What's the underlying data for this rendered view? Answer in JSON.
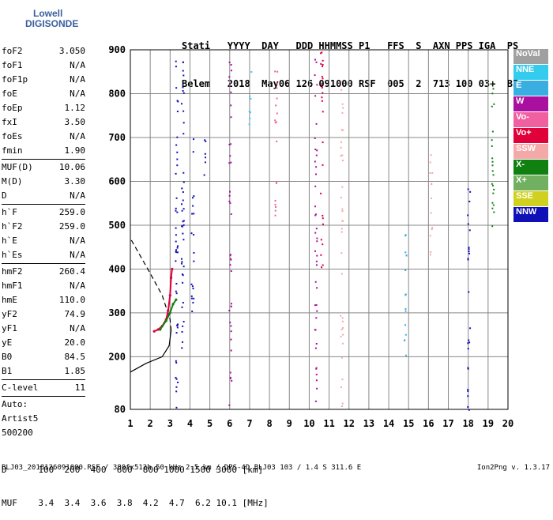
{
  "logo": {
    "line1": "Lowell",
    "line2": "DIGISONDE"
  },
  "header": {
    "labels": [
      "Stati",
      "YYYY",
      "DAY",
      "DDD",
      "HHMMSS",
      "P1",
      "FFS",
      "S",
      "AXN",
      "PPS",
      "IGA",
      "PS"
    ],
    "values": [
      "Belem",
      "2018",
      "May06",
      "126",
      "091000",
      "RSF",
      "005",
      "2",
      "713",
      "100",
      "03+",
      "B5"
    ]
  },
  "params": [
    {
      "k": "foF2",
      "v": "3.050"
    },
    {
      "k": "foF1",
      "v": "N/A"
    },
    {
      "k": "foF1p",
      "v": "N/A"
    },
    {
      "k": "foE",
      "v": "N/A"
    },
    {
      "k": "foEp",
      "v": "1.12"
    },
    {
      "k": "fxI",
      "v": "3.50"
    },
    {
      "k": "foEs",
      "v": "N/A"
    },
    {
      "k": "fmin",
      "v": "1.90"
    },
    {
      "sep": true
    },
    {
      "k": "MUF(D)",
      "v": "10.06"
    },
    {
      "k": "M(D)",
      "v": "3.30"
    },
    {
      "k": "D",
      "v": "N/A"
    },
    {
      "sep": true
    },
    {
      "k": "h`F",
      "v": "259.0"
    },
    {
      "k": "h`F2",
      "v": "259.0"
    },
    {
      "k": "h`E",
      "v": "N/A"
    },
    {
      "k": "h`Es",
      "v": "N/A"
    },
    {
      "sep": true
    },
    {
      "k": "hmF2",
      "v": "260.4"
    },
    {
      "k": "hmF1",
      "v": "N/A"
    },
    {
      "k": "hmE",
      "v": "110.0"
    },
    {
      "k": "yF2",
      "v": "74.9"
    },
    {
      "k": "yF1",
      "v": "N/A"
    },
    {
      "k": "yE",
      "v": "20.0"
    },
    {
      "k": "B0",
      "v": "84.5"
    },
    {
      "k": "B1",
      "v": "1.85"
    },
    {
      "sep": true
    },
    {
      "k": "C-level",
      "v": "11"
    },
    {
      "sep": true
    },
    {
      "k": "Auto:",
      "v": ""
    },
    {
      "k": "Artist5",
      "v": ""
    },
    {
      "k": "500200",
      "v": ""
    }
  ],
  "legend": [
    {
      "label": "NoVal",
      "color": "#a0a0a0"
    },
    {
      "label": "NNE",
      "color": "#33ccee"
    },
    {
      "label": "E",
      "color": "#3aaee0"
    },
    {
      "label": "W",
      "color": "#aa10a0"
    },
    {
      "label": "Vo-",
      "color": "#f060a0"
    },
    {
      "label": "Vo+",
      "color": "#e0003a"
    },
    {
      "label": "SSW",
      "color": "#f5a8a8"
    },
    {
      "label": "X-",
      "color": "#108010"
    },
    {
      "label": "X+",
      "color": "#70b060"
    },
    {
      "label": "SSE",
      "color": "#d0d020"
    },
    {
      "label": "NNW",
      "color": "#1010b8"
    }
  ],
  "dtable": {
    "d_label": "D",
    "muf_label": "MUF",
    "d_values": [
      "100",
      "200",
      "400",
      "600",
      "800",
      "1000",
      "1500",
      "3000"
    ],
    "muf_values": [
      "3.4",
      "3.4",
      "3.6",
      "3.8",
      "4.2",
      "4.7",
      "6.2",
      "10.1"
    ],
    "d_unit": "[km]",
    "muf_unit": "[MHz]"
  },
  "footer": "BLJ03_2018126091000.RSF / 380fx512h 50 kHz 2.5 km / DPS-4D BLJ03 103 / 1.4 S 311.6 E",
  "version": "Ion2Png v. 1.3.17",
  "chart_data": {
    "type": "scatter",
    "xlim": [
      1,
      20
    ],
    "ylim": [
      80,
      900
    ],
    "x_ticks": [
      1,
      2,
      3,
      4,
      5,
      6,
      7,
      8,
      9,
      10,
      11,
      12,
      13,
      14,
      15,
      16,
      17,
      18,
      19,
      20
    ],
    "y_ticks": [
      80,
      200,
      300,
      400,
      500,
      600,
      700,
      800,
      900
    ],
    "grid": true,
    "legend_position": "right",
    "traces": [
      {
        "name": "O-trace",
        "color": "#e0003a",
        "points": [
          [
            2.2,
            258
          ],
          [
            2.4,
            262
          ],
          [
            2.6,
            270
          ],
          [
            2.8,
            285
          ],
          [
            2.9,
            305
          ],
          [
            3.0,
            340
          ],
          [
            3.05,
            380
          ],
          [
            3.1,
            400
          ]
        ]
      },
      {
        "name": "X-trace",
        "color": "#108010",
        "points": [
          [
            2.5,
            262
          ],
          [
            2.8,
            282
          ],
          [
            3.0,
            300
          ],
          [
            3.15,
            320
          ],
          [
            3.3,
            330
          ]
        ]
      }
    ],
    "profile": [
      [
        1.0,
        165
      ],
      [
        1.8,
        185
      ],
      [
        2.6,
        200
      ],
      [
        2.95,
        225
      ],
      [
        3.05,
        260
      ],
      [
        3.0,
        285
      ],
      [
        2.6,
        340
      ],
      [
        2.0,
        390
      ],
      [
        1.5,
        430
      ],
      [
        1.0,
        470
      ]
    ],
    "scatter_columns": [
      {
        "x": 3.3,
        "ymin": 80,
        "ymax": 900,
        "color": "#1010b8"
      },
      {
        "x": 3.6,
        "ymin": 200,
        "ymax": 880,
        "color": "#1010b8"
      },
      {
        "x": 4.1,
        "ymin": 300,
        "ymax": 700,
        "color": "#1010b8"
      },
      {
        "x": 4.7,
        "ymin": 600,
        "ymax": 780,
        "color": "#1010b8"
      },
      {
        "x": 6.0,
        "ymin": 80,
        "ymax": 880,
        "color": "#aa10a0"
      },
      {
        "x": 7.0,
        "ymin": 700,
        "ymax": 880,
        "color": "#33ccee"
      },
      {
        "x": 8.3,
        "ymin": 500,
        "ymax": 860,
        "color": "#f060a0"
      },
      {
        "x": 10.3,
        "ymin": 80,
        "ymax": 900,
        "color": "#aa10a0"
      },
      {
        "x": 10.6,
        "ymin": 400,
        "ymax": 900,
        "color": "#e0003a"
      },
      {
        "x": 11.6,
        "ymin": 80,
        "ymax": 850,
        "color": "#f5a8a8"
      },
      {
        "x": 14.8,
        "ymin": 200,
        "ymax": 500,
        "color": "#3aaee0"
      },
      {
        "x": 16.1,
        "ymin": 400,
        "ymax": 700,
        "color": "#f5a8a8"
      },
      {
        "x": 18.0,
        "ymin": 80,
        "ymax": 600,
        "color": "#1010b8"
      },
      {
        "x": 19.2,
        "ymin": 450,
        "ymax": 850,
        "color": "#108010"
      }
    ]
  }
}
